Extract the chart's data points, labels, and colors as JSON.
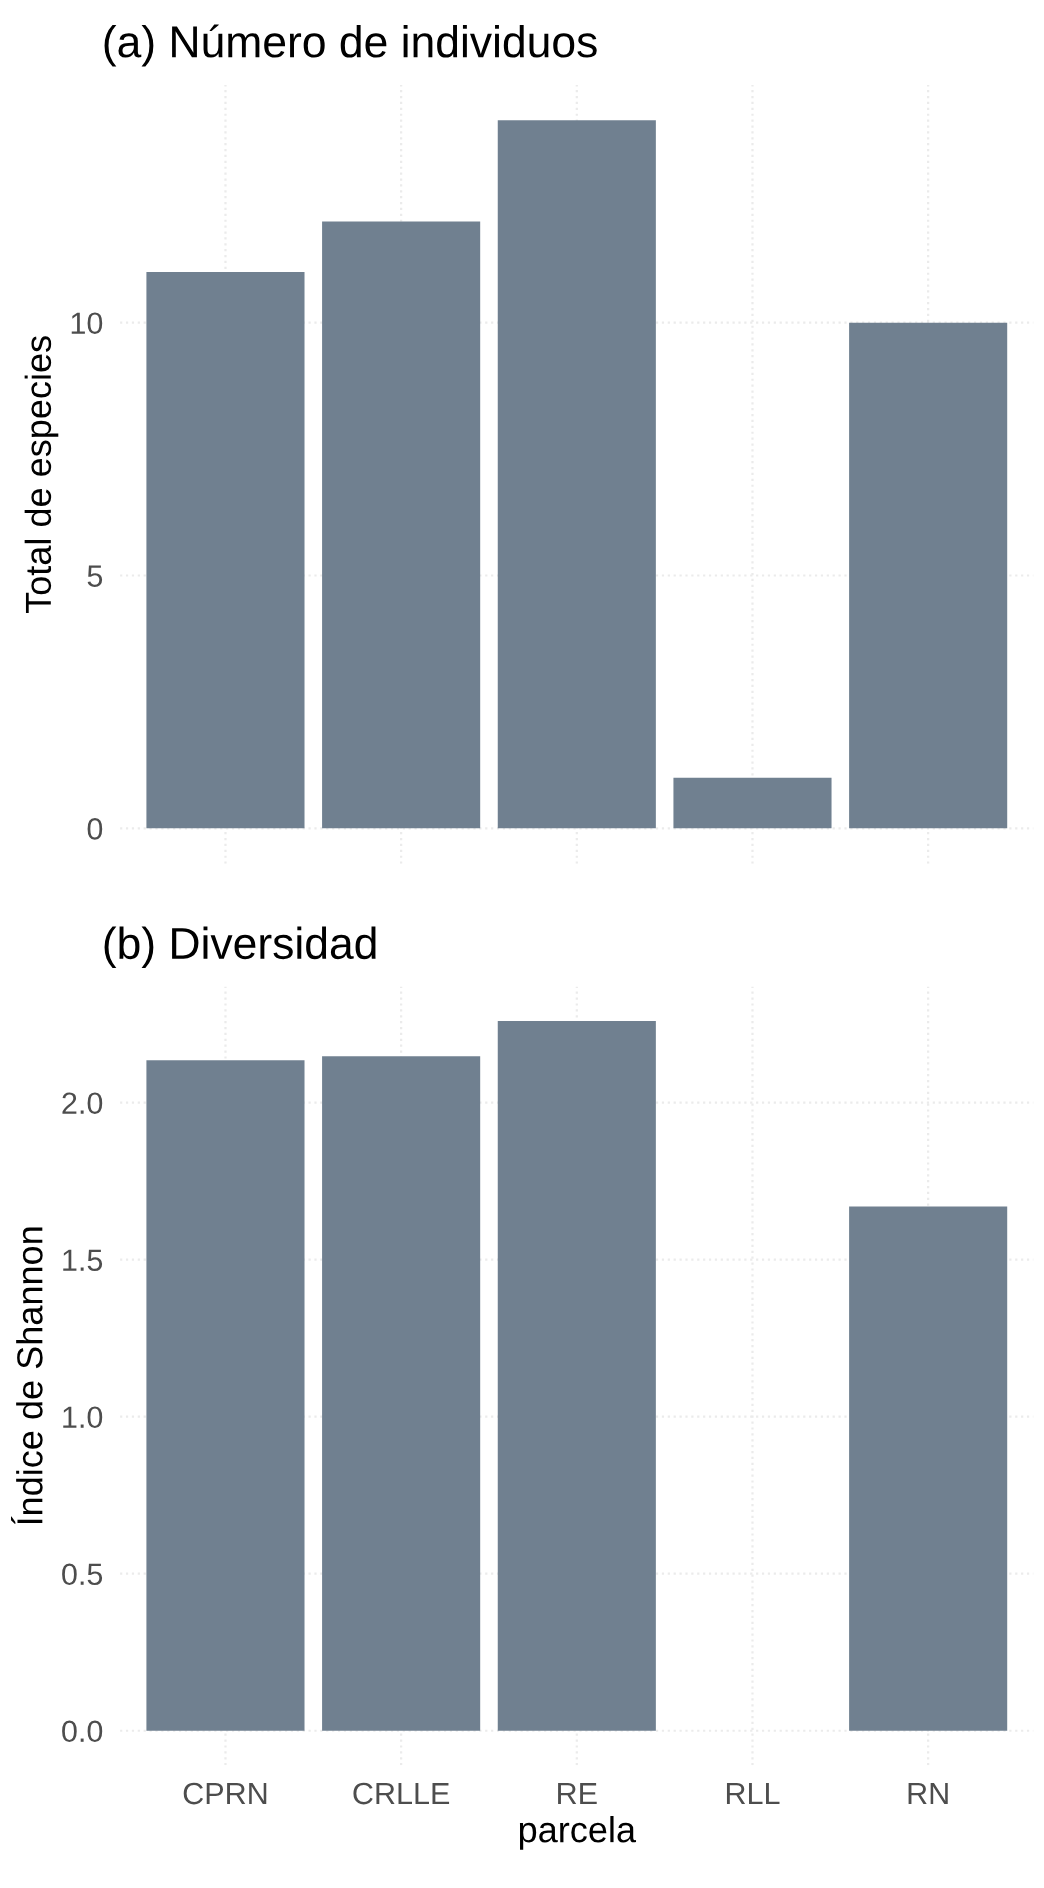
{
  "chart_data": [
    {
      "type": "bar",
      "title": "(a) Número de individuos",
      "ylabel": "Total de especies",
      "categories": [
        null,
        null,
        null,
        null,
        null
      ],
      "values": [
        11,
        12,
        14,
        1,
        10
      ],
      "color": "#708090",
      "ylim": [
        -0.7,
        14.7
      ],
      "yticks": [
        0,
        5,
        10
      ],
      "grid": true,
      "tick_labels": "y"
    },
    {
      "type": "bar",
      "title": "(b) Diversidad",
      "ylabel": "Índice de Shannon",
      "xlabel": "parcela",
      "categories": [
        "CPRN",
        "CRLLE",
        "RE",
        "RLL",
        "RN"
      ],
      "values": [
        2.135,
        2.148,
        2.26,
        0,
        1.669
      ],
      "color": "#708090",
      "ylim": [
        -0.11,
        2.37
      ],
      "yticks": [
        {
          "value": 0,
          "label": "0.0"
        },
        0.5,
        {
          "value": 1,
          "label": "1.0"
        },
        1.5,
        {
          "value": 2,
          "label": "2.0"
        }
      ],
      "grid": true
    }
  ]
}
